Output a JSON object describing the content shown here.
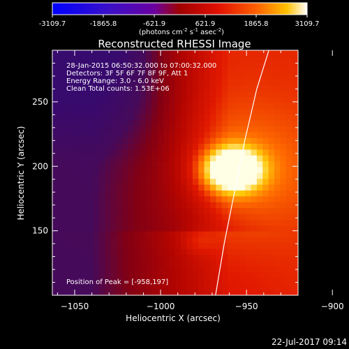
{
  "chart_data": {
    "type": "heatmap",
    "title": "Reconstructed RHESSI Image",
    "xlabel": "Heliocentric X (arcsec)",
    "ylabel": "Heliocentric Y (arcsec)",
    "xlim": [
      -1063,
      -920
    ],
    "ylim": [
      100,
      290
    ],
    "x_ticks": [
      -1050,
      -1000,
      -950,
      -900
    ],
    "y_ticks": [
      150,
      200,
      250
    ],
    "colorbar": {
      "ticks": [
        "-3109.7",
        "-1865.8",
        "-621.9",
        "621.9",
        "1865.8",
        "3109.7"
      ],
      "range": [
        -3109.7,
        3109.7
      ],
      "unit_prefix": "(photons cm",
      "unit_sup1": "-2",
      "unit_mid": " s",
      "unit_sup2": "-1",
      "unit_mid2": " asec",
      "unit_sup3": "-2",
      "unit_suffix": ")"
    },
    "annotations": [
      "28-Jan-2015 06:50:32.000 to 07:00:32.000",
      "Detectors: 3F 5F 6F 7F 8F 9F, Att 1",
      "Energy Range: 3.0 - 6.0 keV",
      "Clean    Total counts: 1.53E+06"
    ],
    "peak_label": "Position of Peak = [-958,197]",
    "peak": [
      -958,
      197
    ],
    "sources": [
      {
        "x": -958,
        "y": 197,
        "level": 3109.7
      },
      {
        "x": -978,
        "y": 141,
        "level": 1600
      },
      {
        "x": -900,
        "y": 170,
        "level": 1300
      }
    ],
    "limb_curve": [
      [
        -968,
        100
      ],
      [
        -963,
        140
      ],
      [
        -957,
        180
      ],
      [
        -951,
        220
      ],
      [
        -944,
        260
      ],
      [
        -937,
        290
      ]
    ],
    "timestamp": "22-Jul-2017 09:14"
  }
}
